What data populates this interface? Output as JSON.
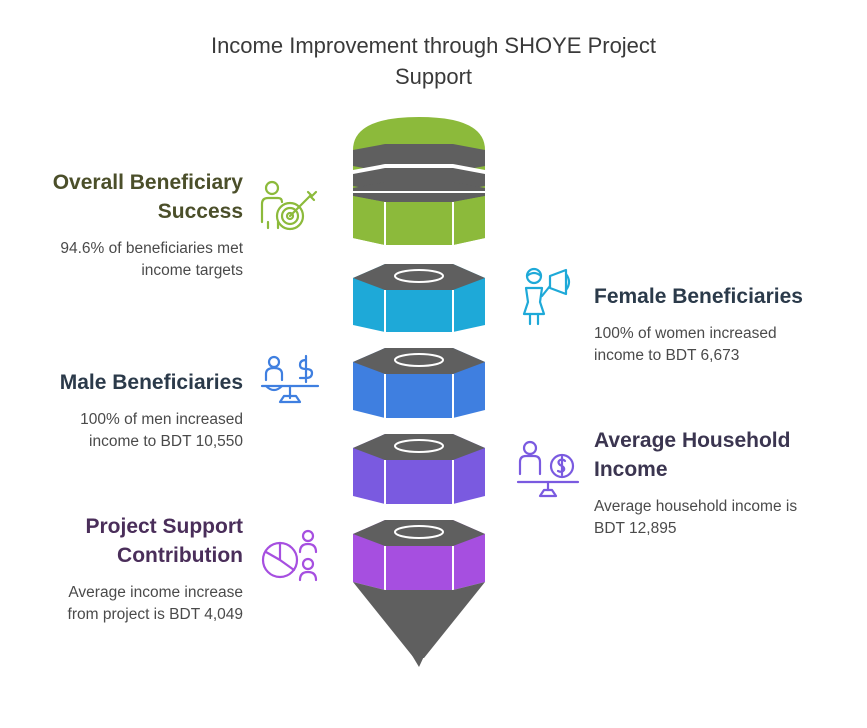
{
  "title": {
    "line1": "Income Improvement through SHOYE Project",
    "line2": "Support"
  },
  "colors": {
    "green": "#8cba3b",
    "cyan": "#1ea9d8",
    "blue": "#3f7fe0",
    "violet": "#7a5ae0",
    "purple": "#a64fe0",
    "gray": "#5f5f5f"
  },
  "items": [
    {
      "heading_line1": "Overall Beneficiary",
      "heading_line2": "Success",
      "text_line1": "94.6% of beneficiaries met",
      "text_line2": "income targets",
      "icon": "target-person-icon",
      "color": "#4b4f2a"
    },
    {
      "heading_line1": "Female Beneficiaries",
      "heading_line2": "",
      "text_line1": "100% of women increased",
      "text_line2": "income to BDT 6,673",
      "icon": "woman-megaphone-icon",
      "color": "#2b3a4a"
    },
    {
      "heading_line1": "Male Beneficiaries",
      "heading_line2": "",
      "text_line1": "100% of men increased",
      "text_line2": "income to BDT 10,550",
      "icon": "man-scale-dollar-icon",
      "color": "#2b3a4a"
    },
    {
      "heading_line1": "Average Household",
      "heading_line2": "Income",
      "text_line1": "Average household income is",
      "text_line2": "BDT 12,895",
      "icon": "person-coin-scale-icon",
      "color": "#3b3550"
    },
    {
      "heading_line1": "Project Support",
      "heading_line2": "Contribution",
      "text_line1": "Average income increase",
      "text_line2": "from project is BDT 4,049",
      "icon": "pie-chart-people-icon",
      "color": "#4a2e5a"
    }
  ]
}
